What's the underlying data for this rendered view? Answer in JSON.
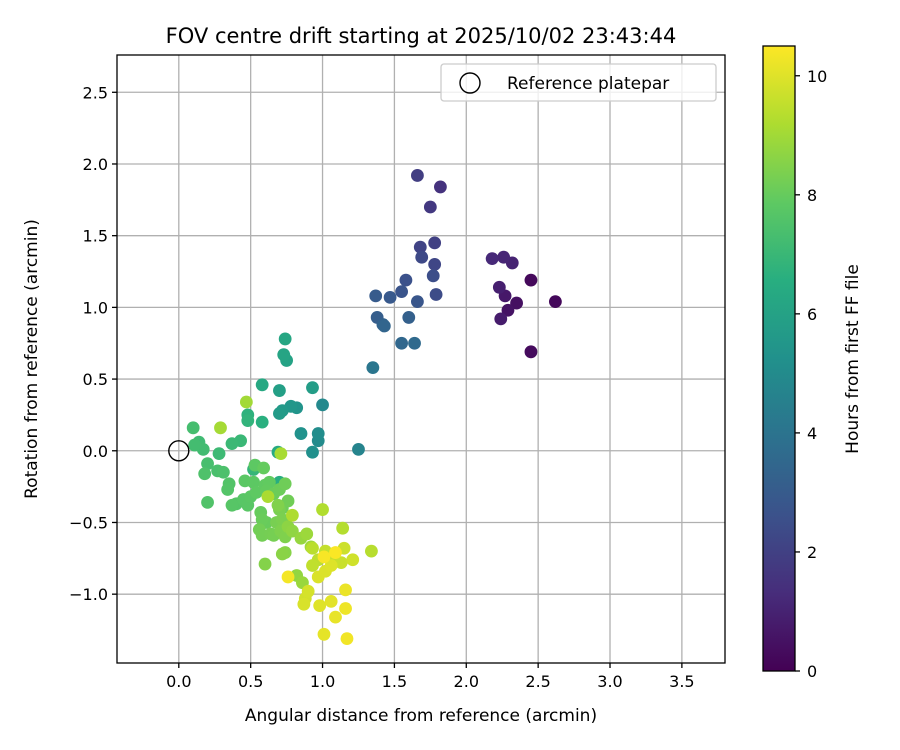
{
  "chart_data": {
    "type": "scatter",
    "title": "FOV centre drift starting at 2025/10/02 23:43:44",
    "xlabel": "Angular distance from reference (arcmin)",
    "ylabel": "Rotation from reference (arcmin)",
    "xlim": [
      -0.43,
      3.8
    ],
    "ylim": [
      -1.48,
      2.76
    ],
    "xticks": [
      0.0,
      0.5,
      1.0,
      1.5,
      2.0,
      2.5,
      3.0,
      3.5
    ],
    "xtick_labels": [
      "0.0",
      "0.5",
      "1.0",
      "1.5",
      "2.0",
      "2.5",
      "3.0",
      "3.5"
    ],
    "yticks": [
      -1.0,
      -0.5,
      0.0,
      0.5,
      1.0,
      1.5,
      2.0,
      2.5
    ],
    "ytick_labels": [
      "−1.0",
      "−0.5",
      "0.0",
      "0.5",
      "1.0",
      "1.5",
      "2.0",
      "2.5"
    ],
    "grid": true,
    "legend": {
      "position": "top-right",
      "entries": [
        "Reference platepar"
      ]
    },
    "reference_point": {
      "x": 0.0,
      "y": 0.0,
      "label": "Reference platepar"
    },
    "colorbar": {
      "label": "Hours from first FF file",
      "colormap": "viridis",
      "range": [
        0,
        10.5
      ],
      "ticks": [
        0,
        2,
        4,
        6,
        8,
        10
      ],
      "tick_labels": [
        "0",
        "2",
        "4",
        "6",
        "8",
        "10"
      ]
    },
    "series": [
      {
        "name": "drift",
        "points": [
          {
            "x": 2.62,
            "y": 1.04,
            "t": 0.2
          },
          {
            "x": 2.45,
            "y": 1.19,
            "t": 0.25
          },
          {
            "x": 2.45,
            "y": 0.69,
            "t": 0.3
          },
          {
            "x": 2.35,
            "y": 1.03,
            "t": 0.45
          },
          {
            "x": 2.29,
            "y": 0.98,
            "t": 0.55
          },
          {
            "x": 2.27,
            "y": 1.08,
            "t": 0.7
          },
          {
            "x": 2.24,
            "y": 0.92,
            "t": 0.8
          },
          {
            "x": 2.23,
            "y": 1.14,
            "t": 0.9
          },
          {
            "x": 2.32,
            "y": 1.31,
            "t": 1.0
          },
          {
            "x": 2.26,
            "y": 1.35,
            "t": 1.1
          },
          {
            "x": 2.18,
            "y": 1.34,
            "t": 1.2
          },
          {
            "x": 1.82,
            "y": 1.84,
            "t": 1.5
          },
          {
            "x": 1.75,
            "y": 1.7,
            "t": 1.7
          },
          {
            "x": 1.66,
            "y": 1.92,
            "t": 1.9
          },
          {
            "x": 1.78,
            "y": 1.45,
            "t": 2.0
          },
          {
            "x": 1.68,
            "y": 1.42,
            "t": 2.1
          },
          {
            "x": 1.78,
            "y": 1.3,
            "t": 2.2
          },
          {
            "x": 1.69,
            "y": 1.35,
            "t": 2.3
          },
          {
            "x": 1.79,
            "y": 1.09,
            "t": 2.4
          },
          {
            "x": 1.77,
            "y": 1.22,
            "t": 2.5
          },
          {
            "x": 1.58,
            "y": 1.19,
            "t": 2.6
          },
          {
            "x": 1.55,
            "y": 1.11,
            "t": 2.7
          },
          {
            "x": 1.66,
            "y": 1.04,
            "t": 2.8
          },
          {
            "x": 1.47,
            "y": 1.07,
            "t": 2.9
          },
          {
            "x": 1.37,
            "y": 1.08,
            "t": 3.0
          },
          {
            "x": 1.38,
            "y": 0.93,
            "t": 3.1
          },
          {
            "x": 1.42,
            "y": 0.88,
            "t": 3.3
          },
          {
            "x": 1.6,
            "y": 0.93,
            "t": 3.2
          },
          {
            "x": 1.43,
            "y": 0.87,
            "t": 3.4
          },
          {
            "x": 1.55,
            "y": 0.75,
            "t": 3.5
          },
          {
            "x": 1.64,
            "y": 0.75,
            "t": 3.6
          },
          {
            "x": 1.35,
            "y": 0.58,
            "t": 4.1
          },
          {
            "x": 1.25,
            "y": 0.01,
            "t": 4.7
          },
          {
            "x": 1.0,
            "y": 0.32,
            "t": 4.9
          },
          {
            "x": 0.97,
            "y": 0.07,
            "t": 5.0
          },
          {
            "x": 0.97,
            "y": 0.12,
            "t": 5.1
          },
          {
            "x": 0.93,
            "y": -0.01,
            "t": 5.2
          },
          {
            "x": 0.85,
            "y": 0.12,
            "t": 5.3
          },
          {
            "x": 0.82,
            "y": 0.3,
            "t": 5.4
          },
          {
            "x": 0.78,
            "y": 0.31,
            "t": 5.5
          },
          {
            "x": 0.72,
            "y": 0.28,
            "t": 5.6
          },
          {
            "x": 0.7,
            "y": 0.26,
            "t": 5.7
          },
          {
            "x": 0.93,
            "y": 0.44,
            "t": 5.8
          },
          {
            "x": 0.7,
            "y": 0.42,
            "t": 5.9
          },
          {
            "x": 0.75,
            "y": 0.63,
            "t": 6.0
          },
          {
            "x": 0.73,
            "y": 0.67,
            "t": 6.1
          },
          {
            "x": 0.74,
            "y": 0.78,
            "t": 6.2
          },
          {
            "x": 0.58,
            "y": 0.46,
            "t": 6.3
          },
          {
            "x": 0.69,
            "y": -0.01,
            "t": 6.4
          },
          {
            "x": 0.7,
            "y": -0.22,
            "t": 6.5
          },
          {
            "x": 0.58,
            "y": 0.2,
            "t": 6.6
          },
          {
            "x": 0.48,
            "y": 0.25,
            "t": 6.7
          },
          {
            "x": 0.48,
            "y": 0.21,
            "t": 6.8
          },
          {
            "x": 0.52,
            "y": -0.13,
            "t": 6.9
          },
          {
            "x": 0.43,
            "y": 0.07,
            "t": 7.0
          },
          {
            "x": 0.37,
            "y": 0.05,
            "t": 7.05
          },
          {
            "x": 0.28,
            "y": -0.02,
            "t": 7.1
          },
          {
            "x": 0.14,
            "y": 0.06,
            "t": 7.15
          },
          {
            "x": 0.17,
            "y": 0.01,
            "t": 7.2
          },
          {
            "x": 0.11,
            "y": 0.04,
            "t": 7.25
          },
          {
            "x": 0.1,
            "y": 0.16,
            "t": 7.3
          },
          {
            "x": 0.2,
            "y": -0.09,
            "t": 7.35
          },
          {
            "x": 0.27,
            "y": -0.14,
            "t": 7.4
          },
          {
            "x": 0.31,
            "y": -0.15,
            "t": 7.45
          },
          {
            "x": 0.18,
            "y": -0.16,
            "t": 7.5
          },
          {
            "x": 0.2,
            "y": -0.36,
            "t": 7.55
          },
          {
            "x": 0.35,
            "y": -0.23,
            "t": 7.6
          },
          {
            "x": 0.34,
            "y": -0.27,
            "t": 7.62
          },
          {
            "x": 0.4,
            "y": -0.37,
            "t": 7.65
          },
          {
            "x": 0.37,
            "y": -0.38,
            "t": 7.7
          },
          {
            "x": 0.45,
            "y": -0.34,
            "t": 7.72
          },
          {
            "x": 0.48,
            "y": -0.38,
            "t": 7.75
          },
          {
            "x": 0.5,
            "y": -0.32,
            "t": 7.78
          },
          {
            "x": 0.46,
            "y": -0.21,
            "t": 7.8
          },
          {
            "x": 0.52,
            "y": -0.22,
            "t": 7.82
          },
          {
            "x": 0.53,
            "y": -0.1,
            "t": 7.85
          },
          {
            "x": 0.54,
            "y": -0.29,
            "t": 7.88
          },
          {
            "x": 0.6,
            "y": -0.24,
            "t": 7.9
          },
          {
            "x": 0.63,
            "y": -0.22,
            "t": 7.92
          },
          {
            "x": 0.61,
            "y": -0.28,
            "t": 7.95
          },
          {
            "x": 0.59,
            "y": -0.12,
            "t": 7.98
          },
          {
            "x": 0.57,
            "y": -0.43,
            "t": 8.0
          },
          {
            "x": 0.61,
            "y": -0.5,
            "t": 8.02
          },
          {
            "x": 0.58,
            "y": -0.48,
            "t": 8.05
          },
          {
            "x": 0.66,
            "y": -0.3,
            "t": 8.08
          },
          {
            "x": 0.7,
            "y": -0.27,
            "t": 8.1
          },
          {
            "x": 0.72,
            "y": -0.4,
            "t": 8.12
          },
          {
            "x": 0.74,
            "y": -0.23,
            "t": 8.15
          },
          {
            "x": 0.76,
            "y": -0.35,
            "t": 8.18
          },
          {
            "x": 0.56,
            "y": -0.55,
            "t": 8.2
          },
          {
            "x": 0.58,
            "y": -0.59,
            "t": 8.22
          },
          {
            "x": 0.64,
            "y": -0.58,
            "t": 8.25
          },
          {
            "x": 0.66,
            "y": -0.59,
            "t": 8.28
          },
          {
            "x": 0.68,
            "y": -0.5,
            "t": 8.3
          },
          {
            "x": 0.7,
            "y": -0.41,
            "t": 8.32
          },
          {
            "x": 0.72,
            "y": -0.48,
            "t": 8.35
          },
          {
            "x": 0.73,
            "y": -0.52,
            "t": 8.38
          },
          {
            "x": 0.71,
            "y": -0.56,
            "t": 8.4
          },
          {
            "x": 0.74,
            "y": -0.6,
            "t": 8.42
          },
          {
            "x": 0.69,
            "y": -0.38,
            "t": 8.45
          },
          {
            "x": 0.6,
            "y": -0.79,
            "t": 8.5
          },
          {
            "x": 0.74,
            "y": -0.71,
            "t": 8.55
          },
          {
            "x": 0.72,
            "y": -0.72,
            "t": 8.6
          },
          {
            "x": 0.76,
            "y": -0.53,
            "t": 8.65
          },
          {
            "x": 0.79,
            "y": -0.56,
            "t": 8.7
          },
          {
            "x": 0.82,
            "y": -0.87,
            "t": 8.75
          },
          {
            "x": 0.85,
            "y": -0.61,
            "t": 8.8
          },
          {
            "x": 0.86,
            "y": -0.92,
            "t": 8.85
          },
          {
            "x": 0.89,
            "y": -0.58,
            "t": 8.9
          },
          {
            "x": 0.92,
            "y": -0.67,
            "t": 8.95
          },
          {
            "x": 0.47,
            "y": 0.34,
            "t": 9.0
          },
          {
            "x": 0.29,
            "y": 0.16,
            "t": 9.05
          },
          {
            "x": 0.71,
            "y": -0.02,
            "t": 9.1
          },
          {
            "x": 0.62,
            "y": -0.32,
            "t": 9.15
          },
          {
            "x": 0.79,
            "y": -0.45,
            "t": 9.2
          },
          {
            "x": 1.0,
            "y": -0.41,
            "t": 9.25
          },
          {
            "x": 1.14,
            "y": -0.54,
            "t": 9.3
          },
          {
            "x": 1.34,
            "y": -0.7,
            "t": 9.35
          },
          {
            "x": 0.93,
            "y": -0.68,
            "t": 9.4
          },
          {
            "x": 0.97,
            "y": -0.76,
            "t": 9.45
          },
          {
            "x": 0.93,
            "y": -0.8,
            "t": 9.5
          },
          {
            "x": 1.02,
            "y": -0.7,
            "t": 9.55
          },
          {
            "x": 1.08,
            "y": -0.76,
            "t": 9.6
          },
          {
            "x": 1.13,
            "y": -0.78,
            "t": 9.65
          },
          {
            "x": 1.15,
            "y": -0.68,
            "t": 9.7
          },
          {
            "x": 1.21,
            "y": -0.76,
            "t": 9.75
          },
          {
            "x": 0.88,
            "y": -1.03,
            "t": 9.8
          },
          {
            "x": 0.9,
            "y": -0.98,
            "t": 9.85
          },
          {
            "x": 0.87,
            "y": -1.07,
            "t": 9.9
          },
          {
            "x": 0.97,
            "y": -0.88,
            "t": 9.92
          },
          {
            "x": 1.02,
            "y": -0.84,
            "t": 9.95
          },
          {
            "x": 1.06,
            "y": -0.8,
            "t": 9.97
          },
          {
            "x": 0.98,
            "y": -1.08,
            "t": 10.0
          },
          {
            "x": 1.06,
            "y": -1.05,
            "t": 10.05
          },
          {
            "x": 1.01,
            "y": -1.28,
            "t": 10.1
          },
          {
            "x": 1.09,
            "y": -1.16,
            "t": 10.15
          },
          {
            "x": 1.16,
            "y": -0.97,
            "t": 10.2
          },
          {
            "x": 1.16,
            "y": -1.1,
            "t": 10.25
          },
          {
            "x": 1.17,
            "y": -1.31,
            "t": 10.3
          },
          {
            "x": 0.76,
            "y": -0.88,
            "t": 10.35
          },
          {
            "x": 1.01,
            "y": -0.74,
            "t": 10.4
          },
          {
            "x": 1.09,
            "y": -0.71,
            "t": 10.45
          }
        ]
      }
    ]
  }
}
